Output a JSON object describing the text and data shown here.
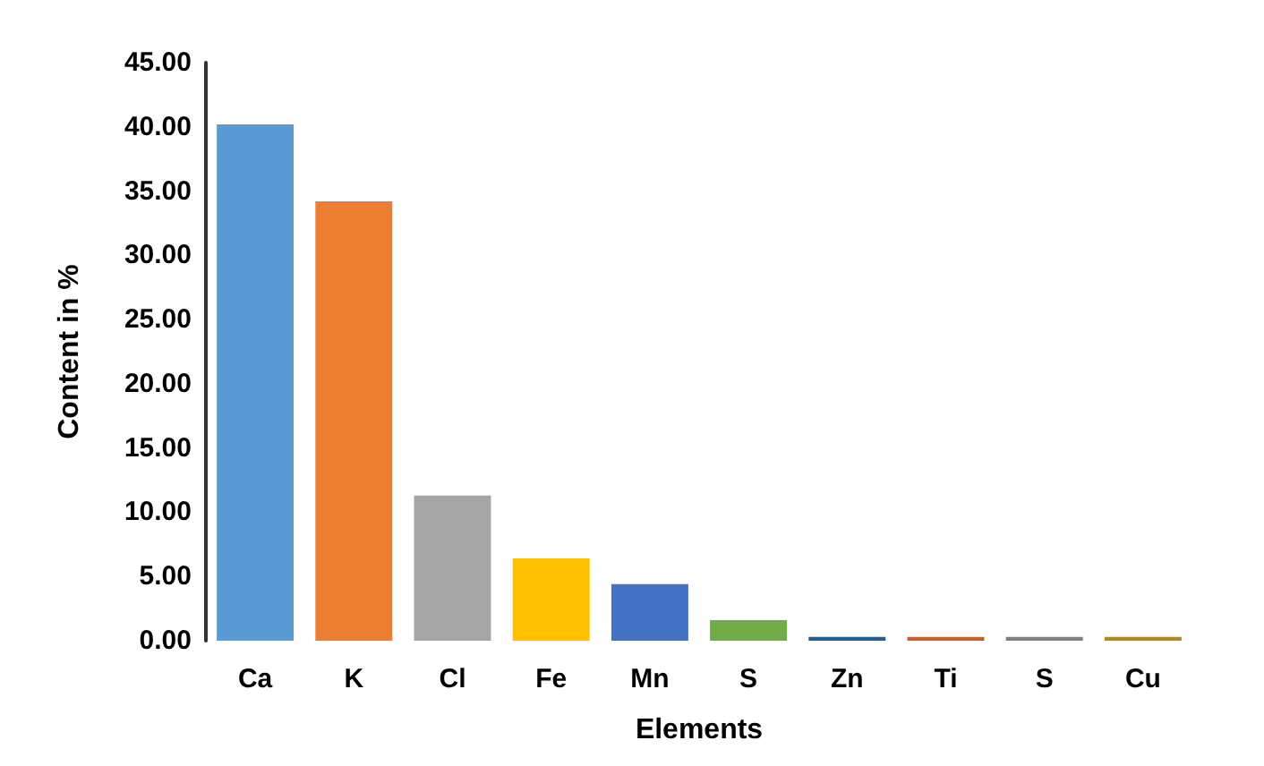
{
  "chart_data": {
    "type": "bar",
    "xlabel": "Elements",
    "ylabel": "Content in %",
    "categories": [
      "Ca",
      "K",
      "Cl",
      "Fe",
      "Mn",
      "S",
      "Zn",
      "Ti",
      "S",
      "Cu"
    ],
    "values": [
      40.2,
      34.2,
      11.3,
      6.4,
      4.4,
      1.6,
      0.3,
      0.3,
      0.3,
      0.3
    ],
    "colors": [
      "#5b9bd5",
      "#ed7d31",
      "#a5a5a5",
      "#ffc000",
      "#4472c4",
      "#70ad47",
      "#255e91",
      "#c0622a",
      "#7f7f7f",
      "#b08a1f"
    ],
    "ylim": [
      0,
      45
    ],
    "yticks": [
      {
        "value": 0,
        "label": "0.00"
      },
      {
        "value": 5,
        "label": "5.00"
      },
      {
        "value": 10,
        "label": "10.00"
      },
      {
        "value": 15,
        "label": "15.00"
      },
      {
        "value": 20,
        "label": "20.00"
      },
      {
        "value": 25,
        "label": "25.00"
      },
      {
        "value": 30,
        "label": "30.00"
      },
      {
        "value": 35,
        "label": "35.00"
      },
      {
        "value": 40,
        "label": "40.00"
      },
      {
        "value": 45,
        "label": "45.00"
      }
    ],
    "grid": false
  }
}
